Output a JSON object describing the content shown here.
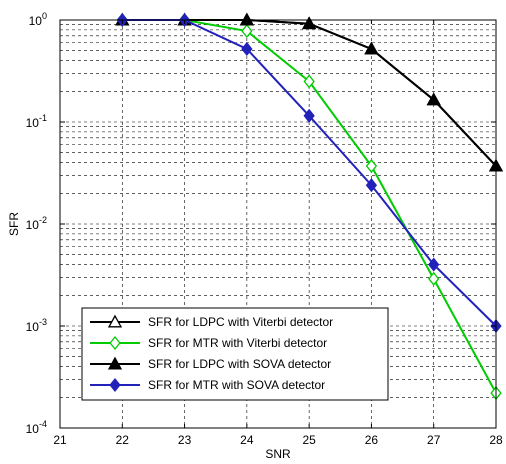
{
  "chart_data": {
    "type": "line",
    "xlabel": "SNR",
    "ylabel": "SFR",
    "xlim": [
      21,
      28
    ],
    "ylim": [
      0.0001,
      1
    ],
    "yscale": "log",
    "grid": true,
    "legend_position": "bottom-left",
    "x_ticks": [
      "21",
      "22",
      "23",
      "24",
      "25",
      "26",
      "27",
      "28"
    ],
    "y_ticks": [
      {
        "base": "10",
        "exp": "0",
        "value": 1
      },
      {
        "base": "10",
        "exp": "-1",
        "value": 0.1
      },
      {
        "base": "10",
        "exp": "-2",
        "value": 0.01
      },
      {
        "base": "10",
        "exp": "-3",
        "value": 0.001
      },
      {
        "base": "10",
        "exp": "-4",
        "value": 0.0001
      }
    ],
    "x": [
      22,
      23,
      24,
      25,
      26,
      27,
      28
    ],
    "series": [
      {
        "name": "SFR for LDPC with Viterbi detector",
        "color": "#000000",
        "marker": "triangle-open",
        "values": [
          1,
          1,
          1,
          0.92,
          0.52,
          0.165,
          0.037
        ]
      },
      {
        "name": "SFR for MTR with Viterbi detector",
        "color": "#00cc00",
        "marker": "diamond-open",
        "values": [
          1,
          1,
          0.78,
          0.25,
          0.037,
          0.0029,
          0.00022
        ]
      },
      {
        "name": "SFR for LDPC with SOVA detector",
        "color": "#000000",
        "marker": "triangle-filled",
        "values": [
          1,
          1,
          1,
          0.92,
          0.52,
          0.165,
          0.037
        ]
      },
      {
        "name": "SFR for MTR with SOVA detector",
        "color": "#2222bb",
        "marker": "diamond-filled",
        "values": [
          1,
          1,
          0.52,
          0.115,
          0.024,
          0.004,
          0.001
        ]
      }
    ]
  }
}
